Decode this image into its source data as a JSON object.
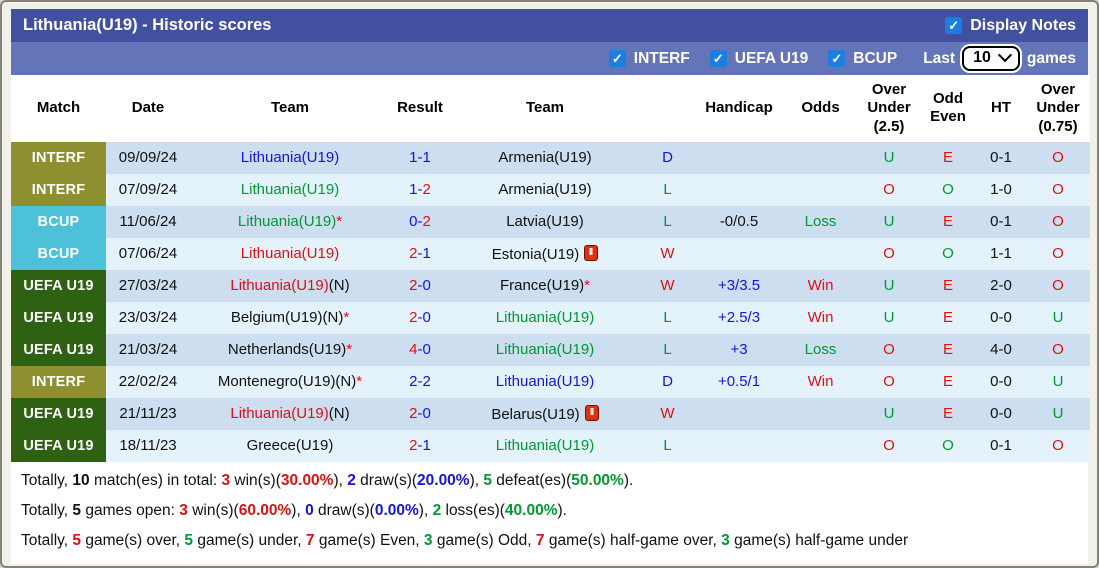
{
  "title_bar": {
    "title": "Lithuania(U19) - Historic scores",
    "display_notes_label": "Display Notes",
    "display_notes_checked": true
  },
  "filter_bar": {
    "filters": [
      {
        "label": "INTERF",
        "checked": true
      },
      {
        "label": "UEFA U19",
        "checked": true
      },
      {
        "label": "BCUP",
        "checked": true
      }
    ],
    "last_label": "Last",
    "last_games_value": "10",
    "games_label": "games"
  },
  "colors": {
    "title_bar": "#41519f",
    "filter_bar": "#6374b8",
    "checkbox_blue": "#1b7ee0",
    "badge_interf": "#8e9030",
    "badge_bcup": "#4cc1d9",
    "badge_uefa_u19": "#2e6212",
    "win_red": "#dd1111",
    "draw_blue": "#1414dd",
    "loss_green": "#009933",
    "row_odd": "#ccdeef",
    "row_even": "#e4f2fb"
  },
  "table": {
    "headers": [
      "Match",
      "Date",
      "Team",
      "Result",
      "Team",
      "",
      "Handicap",
      "Odds",
      "Over Under (2.5)",
      "Odd Even",
      "HT",
      "Over Under (0.75)"
    ],
    "rows": [
      {
        "comp": {
          "t": "INTERF",
          "cls": "interf"
        },
        "date": "09/09/24",
        "t1": [
          {
            "t": "Lithuania(U19)",
            "c": "blue"
          }
        ],
        "res": [
          {
            "t": "1-1",
            "c": "blue"
          }
        ],
        "t2": [
          {
            "t": "Armenia(U19)",
            "c": "k"
          }
        ],
        "wdl": [
          {
            "t": "D",
            "c": "blue"
          }
        ],
        "hc": [],
        "odds": [],
        "ou25": [
          {
            "t": "U",
            "c": "green"
          }
        ],
        "oe": [
          {
            "t": "E",
            "c": "red"
          }
        ],
        "ht": "0-1",
        "ou075": [
          {
            "t": "O",
            "c": "red"
          }
        ]
      },
      {
        "comp": {
          "t": "INTERF",
          "cls": "interf"
        },
        "date": "07/09/24",
        "t1": [
          {
            "t": "Lithuania(U19)",
            "c": "green"
          }
        ],
        "res": [
          {
            "t": "1-",
            "c": "blue"
          },
          {
            "t": "2",
            "c": "red"
          }
        ],
        "t2": [
          {
            "t": "Armenia(U19)",
            "c": "k"
          }
        ],
        "wdl": [
          {
            "t": "L",
            "c": "green"
          }
        ],
        "hc": [],
        "odds": [],
        "ou25": [
          {
            "t": "O",
            "c": "red"
          }
        ],
        "oe": [
          {
            "t": "O",
            "c": "green"
          }
        ],
        "ht": "1-0",
        "ou075": [
          {
            "t": "O",
            "c": "red"
          }
        ]
      },
      {
        "comp": {
          "t": "BCUP",
          "cls": "bcup"
        },
        "date": "11/06/24",
        "t1": [
          {
            "t": "Lithuania(U19)",
            "c": "green"
          },
          {
            "t": "*",
            "c": "red"
          }
        ],
        "res": [
          {
            "t": "0-",
            "c": "blue"
          },
          {
            "t": "2",
            "c": "red"
          }
        ],
        "t2": [
          {
            "t": "Latvia(U19)",
            "c": "k"
          }
        ],
        "wdl": [
          {
            "t": "L",
            "c": "green"
          }
        ],
        "hc": [
          {
            "t": "-0/0.5",
            "c": "k"
          }
        ],
        "odds": [
          {
            "t": "Loss",
            "c": "green"
          }
        ],
        "ou25": [
          {
            "t": "U",
            "c": "green"
          }
        ],
        "oe": [
          {
            "t": "E",
            "c": "red"
          }
        ],
        "ht": "0-1",
        "ou075": [
          {
            "t": "O",
            "c": "red"
          }
        ]
      },
      {
        "comp": {
          "t": "BCUP",
          "cls": "bcup"
        },
        "date": "07/06/24",
        "t1": [
          {
            "t": "Lithuania(U19)",
            "c": "red"
          }
        ],
        "res": [
          {
            "t": "2",
            "c": "red"
          },
          {
            "t": "-1",
            "c": "blue"
          }
        ],
        "t2": [
          {
            "t": "Estonia(U19)",
            "c": "k"
          },
          {
            "icon": true
          }
        ],
        "wdl": [
          {
            "t": "W",
            "c": "red"
          }
        ],
        "hc": [],
        "odds": [],
        "ou25": [
          {
            "t": "O",
            "c": "red"
          }
        ],
        "oe": [
          {
            "t": "O",
            "c": "green"
          }
        ],
        "ht": "1-1",
        "ou075": [
          {
            "t": "O",
            "c": "red"
          }
        ]
      },
      {
        "comp": {
          "t": "UEFA U19",
          "cls": "uefa"
        },
        "date": "27/03/24",
        "t1": [
          {
            "t": "Lithuania(U19)",
            "c": "red"
          },
          {
            "t": "(N)",
            "c": "k"
          }
        ],
        "res": [
          {
            "t": "2",
            "c": "red"
          },
          {
            "t": "-0",
            "c": "blue"
          }
        ],
        "t2": [
          {
            "t": "France(U19)",
            "c": "k"
          },
          {
            "t": "*",
            "c": "red"
          }
        ],
        "wdl": [
          {
            "t": "W",
            "c": "red"
          }
        ],
        "hc": [
          {
            "t": "+3/3.5",
            "c": "blue"
          }
        ],
        "odds": [
          {
            "t": "Win",
            "c": "red"
          }
        ],
        "ou25": [
          {
            "t": "U",
            "c": "green"
          }
        ],
        "oe": [
          {
            "t": "E",
            "c": "red"
          }
        ],
        "ht": "2-0",
        "ou075": [
          {
            "t": "O",
            "c": "red"
          }
        ]
      },
      {
        "comp": {
          "t": "UEFA U19",
          "cls": "uefa"
        },
        "date": "23/03/24",
        "t1": [
          {
            "t": "Belgium(U19)(N)",
            "c": "k"
          },
          {
            "t": "*",
            "c": "red"
          }
        ],
        "res": [
          {
            "t": "2",
            "c": "red"
          },
          {
            "t": "-0",
            "c": "blue"
          }
        ],
        "t2": [
          {
            "t": "Lithuania(U19)",
            "c": "green"
          }
        ],
        "wdl": [
          {
            "t": "L",
            "c": "green"
          }
        ],
        "hc": [
          {
            "t": "+2.5/3",
            "c": "blue"
          }
        ],
        "odds": [
          {
            "t": "Win",
            "c": "red"
          }
        ],
        "ou25": [
          {
            "t": "U",
            "c": "green"
          }
        ],
        "oe": [
          {
            "t": "E",
            "c": "red"
          }
        ],
        "ht": "0-0",
        "ou075": [
          {
            "t": "U",
            "c": "green"
          }
        ]
      },
      {
        "comp": {
          "t": "UEFA U19",
          "cls": "uefa"
        },
        "date": "21/03/24",
        "t1": [
          {
            "t": "Netherlands(U19)",
            "c": "k"
          },
          {
            "t": "*",
            "c": "red"
          }
        ],
        "res": [
          {
            "t": "4",
            "c": "red"
          },
          {
            "t": "-0",
            "c": "blue"
          }
        ],
        "t2": [
          {
            "t": "Lithuania(U19)",
            "c": "green"
          }
        ],
        "wdl": [
          {
            "t": "L",
            "c": "green"
          }
        ],
        "hc": [
          {
            "t": "+3",
            "c": "blue"
          }
        ],
        "odds": [
          {
            "t": "Loss",
            "c": "green"
          }
        ],
        "ou25": [
          {
            "t": "O",
            "c": "red"
          }
        ],
        "oe": [
          {
            "t": "E",
            "c": "red"
          }
        ],
        "ht": "4-0",
        "ou075": [
          {
            "t": "O",
            "c": "red"
          }
        ]
      },
      {
        "comp": {
          "t": "INTERF",
          "cls": "interf"
        },
        "date": "22/02/24",
        "t1": [
          {
            "t": "Montenegro(U19)(N)",
            "c": "k"
          },
          {
            "t": "*",
            "c": "red"
          }
        ],
        "res": [
          {
            "t": "2-2",
            "c": "blue"
          }
        ],
        "t2": [
          {
            "t": "Lithuania(U19)",
            "c": "blue"
          }
        ],
        "wdl": [
          {
            "t": "D",
            "c": "blue"
          }
        ],
        "hc": [
          {
            "t": "+0.5/1",
            "c": "blue"
          }
        ],
        "odds": [
          {
            "t": "Win",
            "c": "red"
          }
        ],
        "ou25": [
          {
            "t": "O",
            "c": "red"
          }
        ],
        "oe": [
          {
            "t": "E",
            "c": "red"
          }
        ],
        "ht": "0-0",
        "ou075": [
          {
            "t": "U",
            "c": "green"
          }
        ]
      },
      {
        "comp": {
          "t": "UEFA U19",
          "cls": "uefa"
        },
        "date": "21/11/23",
        "t1": [
          {
            "t": "Lithuania(U19)",
            "c": "red"
          },
          {
            "t": "(N)",
            "c": "k"
          }
        ],
        "res": [
          {
            "t": "2",
            "c": "red"
          },
          {
            "t": "-0",
            "c": "blue"
          }
        ],
        "t2": [
          {
            "t": "Belarus(U19)",
            "c": "k"
          },
          {
            "icon": true
          }
        ],
        "wdl": [
          {
            "t": "W",
            "c": "red"
          }
        ],
        "hc": [],
        "odds": [],
        "ou25": [
          {
            "t": "U",
            "c": "green"
          }
        ],
        "oe": [
          {
            "t": "E",
            "c": "red"
          }
        ],
        "ht": "0-0",
        "ou075": [
          {
            "t": "U",
            "c": "green"
          }
        ]
      },
      {
        "comp": {
          "t": "UEFA U19",
          "cls": "uefa"
        },
        "date": "18/11/23",
        "t1": [
          {
            "t": "Greece(U19)",
            "c": "k"
          }
        ],
        "res": [
          {
            "t": "2",
            "c": "red"
          },
          {
            "t": "-1",
            "c": "blue"
          }
        ],
        "t2": [
          {
            "t": "Lithuania(U19)",
            "c": "green"
          }
        ],
        "wdl": [
          {
            "t": "L",
            "c": "green"
          }
        ],
        "hc": [],
        "odds": [],
        "ou25": [
          {
            "t": "O",
            "c": "red"
          }
        ],
        "oe": [
          {
            "t": "O",
            "c": "green"
          }
        ],
        "ht": "0-1",
        "ou075": [
          {
            "t": "O",
            "c": "red"
          }
        ]
      }
    ]
  },
  "summary": {
    "lines": [
      {
        "segs": [
          {
            "t": "Totally, ",
            "c": "k"
          },
          {
            "t": "10",
            "c": "kb"
          },
          {
            "t": " match(es) in total: ",
            "c": "k"
          },
          {
            "t": "3",
            "c": "rb"
          },
          {
            "t": " win(s)(",
            "c": "k"
          },
          {
            "t": "30.00%",
            "c": "rb"
          },
          {
            "t": "), ",
            "c": "k"
          },
          {
            "t": "2",
            "c": "bb"
          },
          {
            "t": " draw(s)(",
            "c": "k"
          },
          {
            "t": "20.00%",
            "c": "bb"
          },
          {
            "t": "), ",
            "c": "k"
          },
          {
            "t": "5",
            "c": "gb"
          },
          {
            "t": " defeat(es)(",
            "c": "k"
          },
          {
            "t": "50.00%",
            "c": "gb"
          },
          {
            "t": ").",
            "c": "k"
          }
        ]
      },
      {
        "segs": [
          {
            "t": "Totally, ",
            "c": "k"
          },
          {
            "t": "5",
            "c": "kb"
          },
          {
            "t": " games open: ",
            "c": "k"
          },
          {
            "t": "3",
            "c": "rb"
          },
          {
            "t": " win(s)(",
            "c": "k"
          },
          {
            "t": "60.00%",
            "c": "rb"
          },
          {
            "t": "), ",
            "c": "k"
          },
          {
            "t": "0",
            "c": "bb"
          },
          {
            "t": " draw(s)(",
            "c": "k"
          },
          {
            "t": "0.00%",
            "c": "bb"
          },
          {
            "t": "), ",
            "c": "k"
          },
          {
            "t": "2",
            "c": "gb"
          },
          {
            "t": " loss(es)(",
            "c": "k"
          },
          {
            "t": "40.00%",
            "c": "gb"
          },
          {
            "t": ").",
            "c": "k"
          }
        ]
      },
      {
        "segs": [
          {
            "t": "Totally, ",
            "c": "k"
          },
          {
            "t": "5",
            "c": "rb"
          },
          {
            "t": " game(s) over, ",
            "c": "k"
          },
          {
            "t": "5",
            "c": "gb"
          },
          {
            "t": " game(s) under, ",
            "c": "k"
          },
          {
            "t": "7",
            "c": "rb"
          },
          {
            "t": " game(s) Even, ",
            "c": "k"
          },
          {
            "t": "3",
            "c": "gb"
          },
          {
            "t": " game(s) Odd, ",
            "c": "k"
          },
          {
            "t": "7",
            "c": "rb"
          },
          {
            "t": " game(s) half-game over, ",
            "c": "k"
          },
          {
            "t": "3",
            "c": "gb"
          },
          {
            "t": " game(s) half-game under",
            "c": "k"
          }
        ]
      }
    ]
  }
}
